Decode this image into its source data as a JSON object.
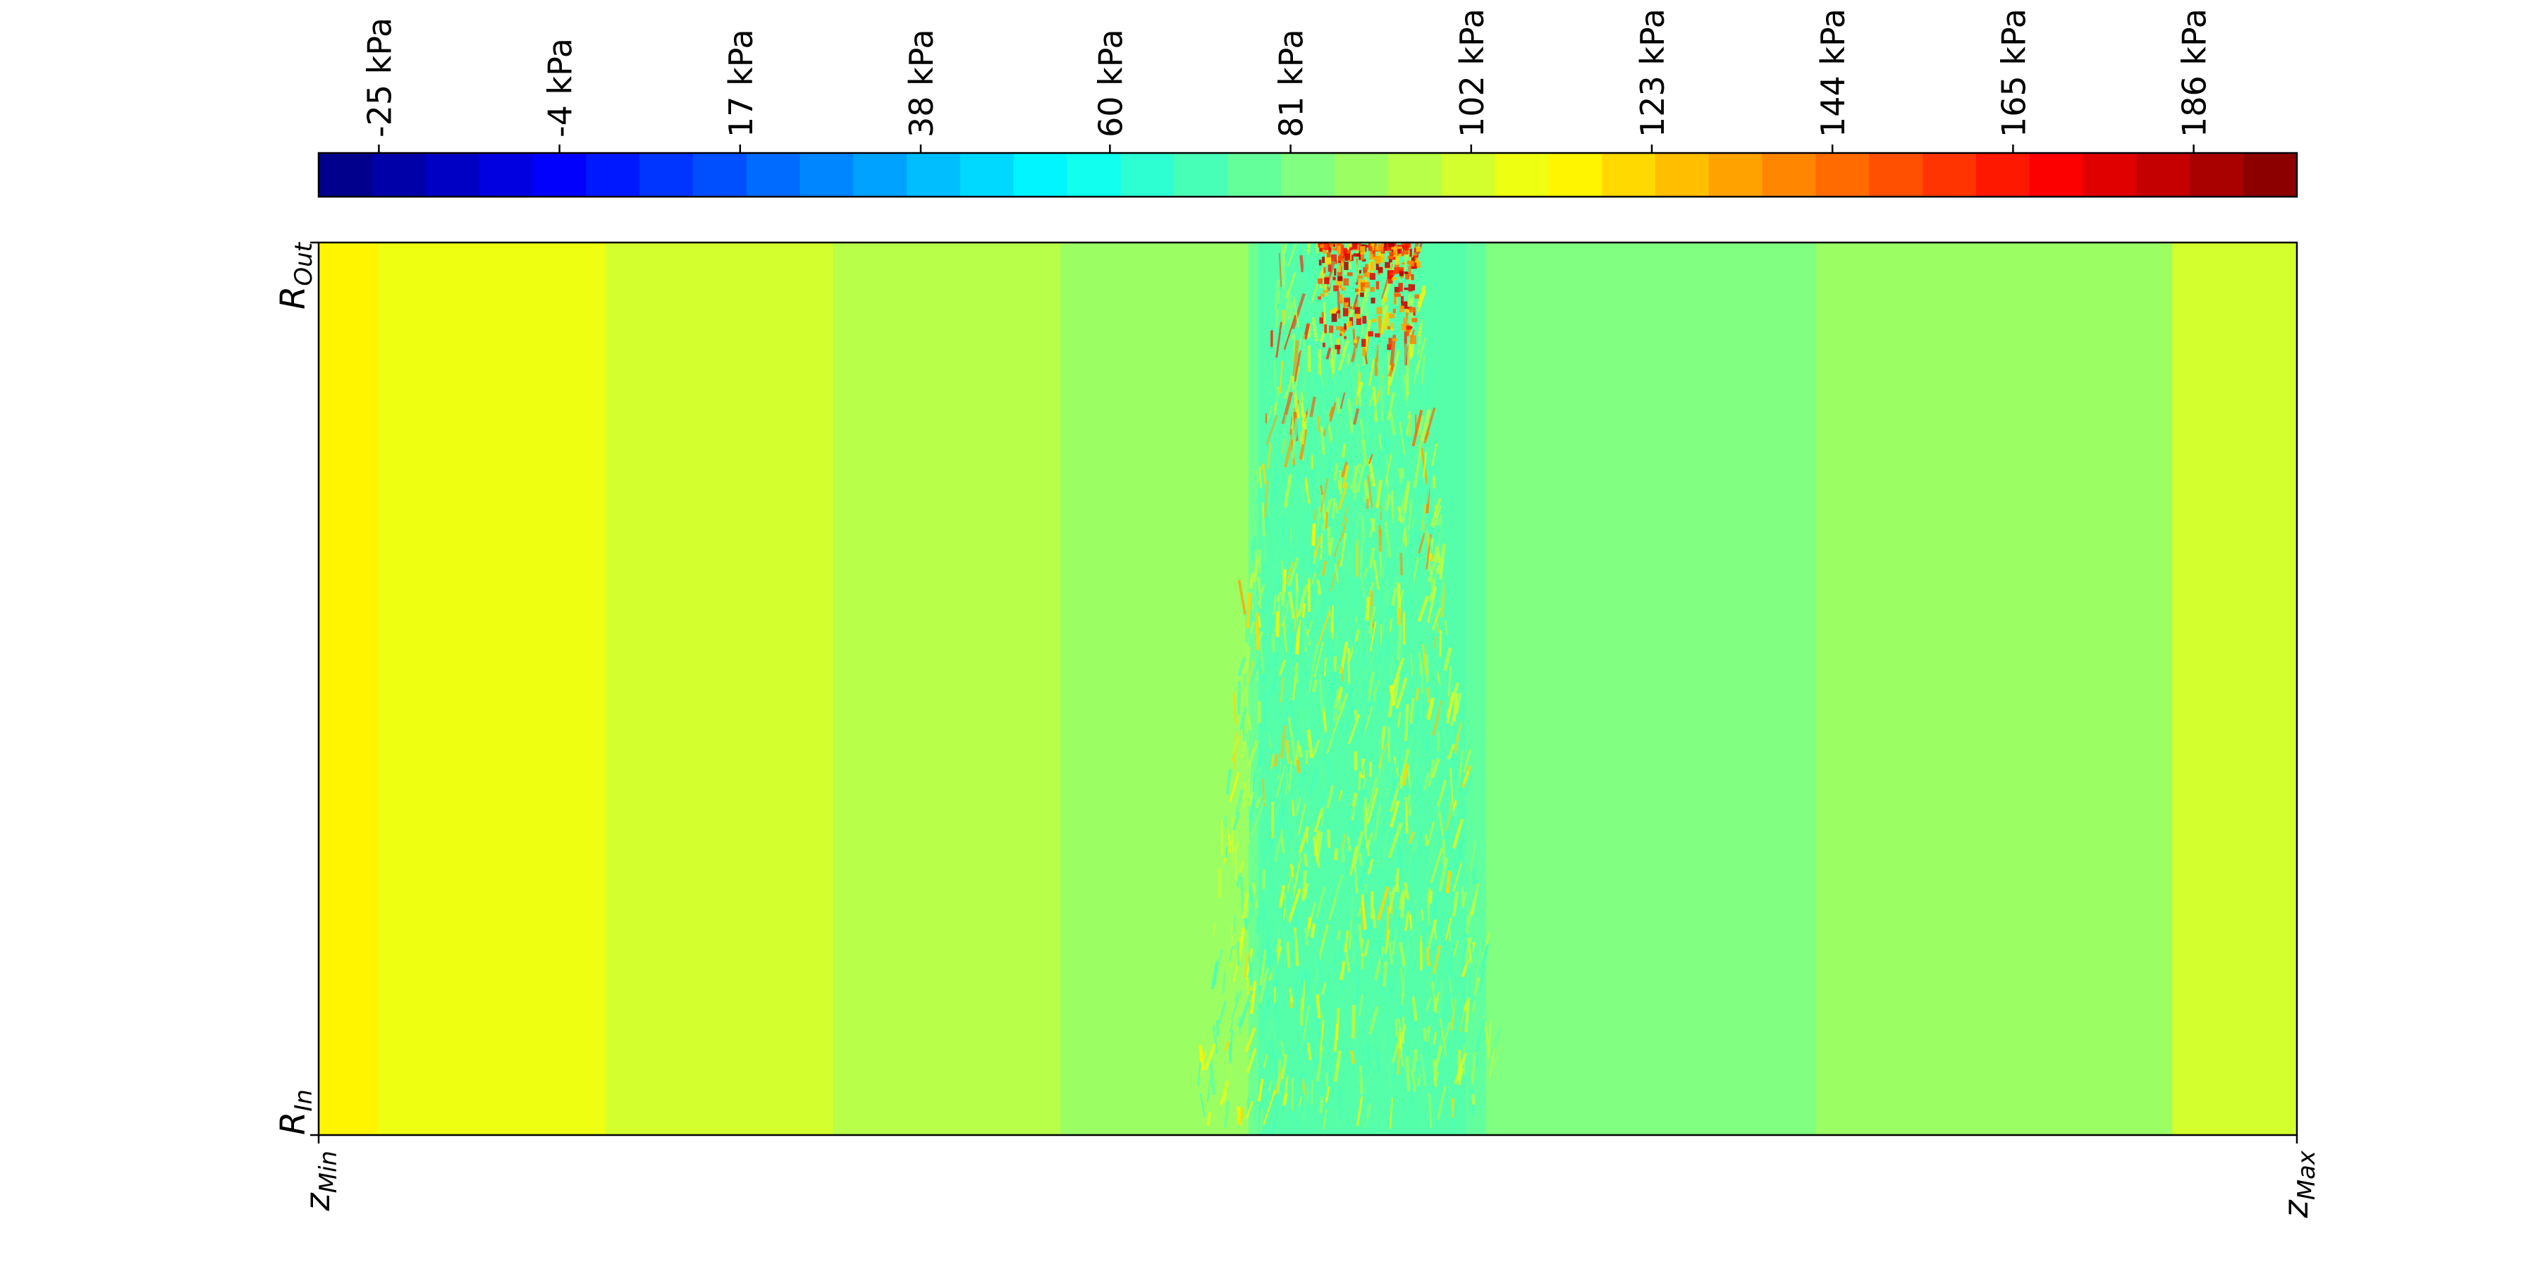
{
  "chart_data": {
    "type": "heatmap",
    "title": "",
    "colorbar": {
      "placement": "top",
      "colormap": "jet",
      "range": [
        -32,
        198
      ],
      "levels": 37,
      "unit": "kPa",
      "tick_values": [
        -25,
        -4,
        17,
        38,
        60,
        81,
        102,
        123,
        144,
        165,
        186
      ],
      "tick_labels": [
        "-25 kPa",
        "-4 kPa",
        "17 kPa",
        "38 kPa",
        "60 kPa",
        "81 kPa",
        "102 kPa",
        "123 kPa",
        "144 kPa",
        "165 kPa",
        "186 kPa"
      ]
    },
    "axes": {
      "x_tick_labels": [
        {
          "base": "z",
          "sub": "Min"
        },
        {
          "base": "z",
          "sub": "Max"
        }
      ],
      "y_tick_labels": [
        {
          "base": "R",
          "sub": "Out"
        },
        {
          "base": "R",
          "sub": "In"
        }
      ],
      "x_range": [
        0,
        1
      ],
      "y_range": [
        0,
        1
      ],
      "grid": false
    },
    "field": {
      "description_units": "kPa",
      "bands": [
        {
          "z_start": 0.0,
          "z_end": 0.03,
          "value": 113
        },
        {
          "z_start": 0.03,
          "z_end": 0.145,
          "value": 107
        },
        {
          "z_start": 0.145,
          "z_end": 0.26,
          "value": 100
        },
        {
          "z_start": 0.26,
          "z_end": 0.375,
          "value": 94
        },
        {
          "z_start": 0.375,
          "z_end": 0.475,
          "value": 87
        },
        {
          "z_start": 0.475,
          "z_end": 0.58,
          "value": 78
        },
        {
          "z_start": 0.58,
          "z_end": 0.757,
          "value": 84
        },
        {
          "z_start": 0.757,
          "z_end": 0.937,
          "value": 90
        },
        {
          "z_start": 0.937,
          "z_end": 1.0,
          "value": 100
        }
      ],
      "disturbance": {
        "z_center": 0.52,
        "z_halfwidth": 0.06,
        "peak_value": 170
      }
    }
  }
}
